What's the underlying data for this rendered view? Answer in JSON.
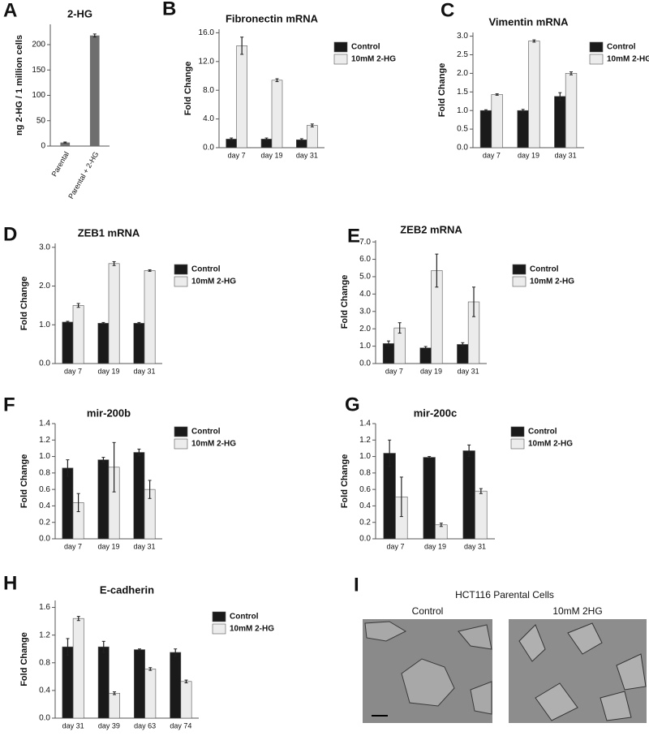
{
  "chart_data": [
    {
      "type": "bar",
      "panel": "A",
      "title": "2-HG",
      "y_label": "ng 2-HG / 1 million cells",
      "categories": [
        "Parental",
        "Parental + 2-HG"
      ],
      "values": [
        7,
        218
      ],
      "errors": [
        1,
        3
      ],
      "color": "#6e6e6e",
      "ylim": [
        0,
        240
      ],
      "yticks": [
        0,
        50,
        100,
        150,
        200
      ]
    },
    {
      "type": "grouped_bar",
      "panel": "B",
      "title": "Fibronectin mRNA",
      "y_label": "Fold Change",
      "categories": [
        "day 7",
        "day 19",
        "day 31"
      ],
      "series": [
        {
          "name": "Control",
          "color": "#1a1a1a",
          "values": [
            1.2,
            1.2,
            1.1
          ],
          "errors": [
            0.15,
            0.15,
            0.15
          ]
        },
        {
          "name": "10mM 2-HG",
          "color": "#ececec",
          "values": [
            14.2,
            9.4,
            3.1
          ],
          "errors": [
            1.2,
            0.2,
            0.2
          ]
        }
      ],
      "ylim": [
        0,
        16.5
      ],
      "yticks": [
        {
          "value": 0,
          "label": "0.0"
        },
        {
          "value": 4,
          "label": "4.0"
        },
        {
          "value": 8,
          "label": "8.0"
        },
        {
          "value": 12,
          "label": "12.0"
        },
        {
          "value": 16,
          "label": "16.0"
        }
      ]
    },
    {
      "type": "grouped_bar",
      "panel": "C",
      "title": "Vimentin mRNA",
      "y_label": "Fold Change",
      "categories": [
        "day 7",
        "day 19",
        "day 31"
      ],
      "series": [
        {
          "name": "Control",
          "color": "#1a1a1a",
          "values": [
            1.0,
            1.0,
            1.38
          ],
          "errors": [
            0.02,
            0.03,
            0.1
          ]
        },
        {
          "name": "10mM 2-HG",
          "color": "#ececec",
          "values": [
            1.43,
            2.87,
            2.0
          ],
          "errors": [
            0.02,
            0.03,
            0.04
          ]
        }
      ],
      "ylim": [
        0,
        3.1
      ],
      "yticks": [
        {
          "value": 0,
          "label": "0.0"
        },
        0.5,
        {
          "value": 1,
          "label": "1.0"
        },
        1.5,
        {
          "value": 2,
          "label": "2.0"
        },
        2.5,
        {
          "value": 3,
          "label": "3.0"
        }
      ]
    },
    {
      "type": "grouped_bar",
      "panel": "D",
      "title": "ZEB1 mRNA",
      "y_label": "Fold Change",
      "categories": [
        "day 7",
        "day 19",
        "day 31"
      ],
      "series": [
        {
          "name": "Control",
          "color": "#1a1a1a",
          "values": [
            1.07,
            1.04,
            1.04
          ],
          "errors": [
            0.02,
            0.02,
            0.02
          ]
        },
        {
          "name": "10mM 2-HG",
          "color": "#ececec",
          "values": [
            1.5,
            2.58,
            2.4
          ],
          "errors": [
            0.05,
            0.05,
            0.02
          ]
        }
      ],
      "ylim": [
        0,
        3.1
      ],
      "yticks": [
        {
          "value": 0,
          "label": "0.0"
        },
        {
          "value": 1,
          "label": "1.0"
        },
        {
          "value": 2,
          "label": "2.0"
        },
        {
          "value": 3,
          "label": "3.0"
        }
      ]
    },
    {
      "type": "grouped_bar",
      "panel": "E",
      "title": "ZEB2 mRNA",
      "y_label": "Fold Change",
      "categories": [
        "day 7",
        "day 19",
        "day 31"
      ],
      "series": [
        {
          "name": "Control",
          "color": "#1a1a1a",
          "values": [
            1.15,
            0.9,
            1.1
          ],
          "errors": [
            0.15,
            0.08,
            0.1
          ]
        },
        {
          "name": "10mM 2-HG",
          "color": "#ececec",
          "values": [
            2.05,
            5.35,
            3.55
          ],
          "errors": [
            0.3,
            0.95,
            0.85
          ]
        }
      ],
      "ylim": [
        0,
        7.1
      ],
      "yticks": [
        {
          "value": 0,
          "label": "0.0"
        },
        {
          "value": 1,
          "label": "1.0"
        },
        {
          "value": 2,
          "label": "2.0"
        },
        {
          "value": 3,
          "label": "3.0"
        },
        {
          "value": 4,
          "label": "4.0"
        },
        {
          "value": 5,
          "label": "5.0"
        },
        {
          "value": 6,
          "label": "6.0"
        },
        {
          "value": 7,
          "label": "7.0"
        }
      ]
    },
    {
      "type": "grouped_bar",
      "panel": "F",
      "title": "mir-200b",
      "y_label": "Fold Change",
      "categories": [
        "day 7",
        "day 19",
        "day 31"
      ],
      "series": [
        {
          "name": "Control",
          "color": "#1a1a1a",
          "values": [
            0.86,
            0.96,
            1.05
          ],
          "errors": [
            0.1,
            0.03,
            0.04
          ]
        },
        {
          "name": "10mM 2-HG",
          "color": "#ececec",
          "values": [
            0.44,
            0.87,
            0.6
          ],
          "errors": [
            0.11,
            0.3,
            0.11
          ]
        }
      ],
      "ylim": [
        0,
        1.4
      ],
      "yticks": [
        {
          "value": 0,
          "label": "0.0"
        },
        0.2,
        0.4,
        0.6,
        0.8,
        {
          "value": 1,
          "label": "1.0"
        },
        1.2,
        1.4
      ]
    },
    {
      "type": "grouped_bar",
      "panel": "G",
      "title": "mir-200c",
      "y_label": "Fold Change",
      "categories": [
        "day 7",
        "day 19",
        "day 31"
      ],
      "series": [
        {
          "name": "Control",
          "color": "#1a1a1a",
          "values": [
            1.04,
            0.99,
            1.07
          ],
          "errors": [
            0.16,
            0.01,
            0.07
          ]
        },
        {
          "name": "10mM 2-HG",
          "color": "#ececec",
          "values": [
            0.51,
            0.17,
            0.58
          ],
          "errors": [
            0.24,
            0.02,
            0.03
          ]
        }
      ],
      "ylim": [
        0,
        1.4
      ],
      "yticks": [
        {
          "value": 0,
          "label": "0.0"
        },
        0.2,
        0.4,
        0.6,
        0.8,
        {
          "value": 1,
          "label": "1.0"
        },
        1.2,
        1.4
      ]
    },
    {
      "type": "grouped_bar",
      "panel": "H",
      "title": "E-cadherin",
      "y_label": "Fold Change",
      "categories": [
        "day 31",
        "day 39",
        "day 63",
        "day 74"
      ],
      "series": [
        {
          "name": "Control",
          "color": "#1a1a1a",
          "values": [
            1.03,
            1.03,
            0.99,
            0.95
          ],
          "errors": [
            0.12,
            0.08,
            0.01,
            0.05
          ]
        },
        {
          "name": "10mM 2-HG",
          "color": "#ececec",
          "values": [
            1.44,
            0.36,
            0.71,
            0.53
          ],
          "errors": [
            0.03,
            0.02,
            0.02,
            0.02
          ]
        }
      ],
      "ylim": [
        0,
        1.7
      ],
      "yticks": [
        {
          "value": 0,
          "label": "0.0"
        },
        0.4,
        0.8,
        1.2,
        1.6
      ]
    }
  ],
  "image_panel": {
    "panel": "I",
    "title": "HCT116 Parental Cells",
    "left_label": "Control",
    "right_label": "10mM 2HG"
  }
}
